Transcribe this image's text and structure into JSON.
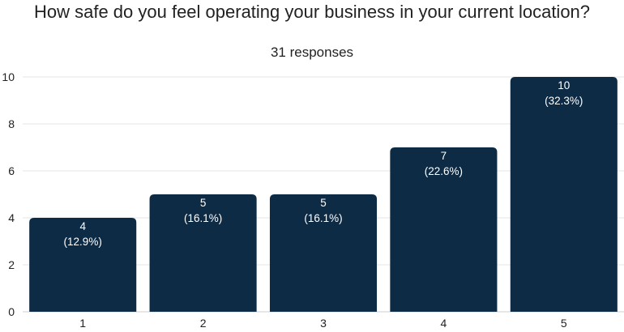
{
  "chart_data": {
    "type": "bar",
    "title": "How safe do you feel operating your business in your current location?",
    "subtitle": "31 responses",
    "categories": [
      "1",
      "2",
      "3",
      "4",
      "5"
    ],
    "values": [
      4,
      5,
      5,
      7,
      10
    ],
    "percent_labels": [
      "(12.9%)",
      "(16.1%)",
      "(16.1%)",
      "(22.6%)",
      "(32.3%)"
    ],
    "ylim": [
      0,
      10
    ],
    "yticks": [
      0,
      2,
      4,
      6,
      8,
      10
    ],
    "grid": true,
    "legend": "none",
    "xlabel": "",
    "ylabel": "",
    "bar_color": "#0d2b45",
    "grid_color": "#e6e6e6"
  }
}
